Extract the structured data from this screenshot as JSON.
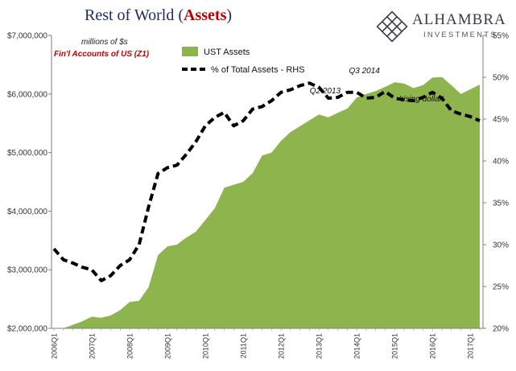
{
  "header": {
    "title_prefix": "Rest of World (",
    "title_emphasis": "Assets",
    "title_suffix": ")",
    "units_note": "millions of $s",
    "source_note": "Fin'l Accounts of US (Z1)"
  },
  "logo": {
    "name": "ALHAMBRA",
    "subtitle": "INVESTMENTS",
    "icon": "alhambra-lattice-icon"
  },
  "colors": {
    "area_fill": "#8eb44e",
    "line": "#000000",
    "title": "#1f2a6b",
    "accent": "#c00000"
  },
  "chart_data": {
    "type": "area",
    "x_tick_labels": [
      "2006Q1",
      "2007Q1",
      "2008Q1",
      "2009Q1",
      "2010Q1",
      "2011Q1",
      "2012Q1",
      "2013Q1",
      "2014Q1",
      "2015Q1",
      "2016Q1",
      "2017Q1"
    ],
    "x_tick_index": [
      0,
      4,
      8,
      12,
      16,
      20,
      24,
      28,
      32,
      36,
      40,
      44
    ],
    "ylim_left": [
      2000000,
      7000000
    ],
    "ylim_right": [
      20,
      55
    ],
    "left_tick_values": [
      2000000,
      3000000,
      4000000,
      5000000,
      6000000,
      7000000
    ],
    "left_tick_labels": [
      "$2,000,000",
      "$3,000,000",
      "$4,000,000",
      "$5,000,000",
      "$6,000,000",
      "$7,000,000"
    ],
    "right_tick_values": [
      20,
      25,
      30,
      35,
      40,
      45,
      50,
      55
    ],
    "right_tick_labels": [
      "20%",
      "25%",
      "30%",
      "35%",
      "40%",
      "45%",
      "50%",
      "55%"
    ],
    "series": [
      {
        "name": "UST Assets",
        "axis": "left",
        "kind": "area",
        "values": [
          1990000,
          2000000,
          2060000,
          2120000,
          2200000,
          2180000,
          2220000,
          2310000,
          2450000,
          2470000,
          2700000,
          3250000,
          3400000,
          3430000,
          3550000,
          3650000,
          3850000,
          4050000,
          4400000,
          4450000,
          4500000,
          4650000,
          4950000,
          5000000,
          5200000,
          5350000,
          5450000,
          5550000,
          5650000,
          5600000,
          5680000,
          5750000,
          5940000,
          6000000,
          6050000,
          6120000,
          6200000,
          6180000,
          6100000,
          6150000,
          6280000,
          6290000,
          6150000,
          6000000,
          6080000,
          6160000
        ]
      },
      {
        "name": "% of Total Assets - RHS",
        "axis": "right",
        "kind": "dashed-line",
        "values": [
          29.5,
          28.2,
          27.8,
          27.3,
          27.0,
          25.7,
          26.3,
          27.5,
          28.2,
          30.0,
          34.5,
          38.5,
          39.2,
          39.5,
          40.8,
          42.3,
          44.2,
          45.2,
          45.8,
          44.2,
          44.8,
          46.2,
          46.5,
          47.2,
          48.2,
          48.5,
          49.0,
          49.3,
          48.8,
          47.5,
          47.6,
          48.2,
          48.2,
          47.5,
          47.6,
          48.3,
          47.5,
          47.3,
          47.2,
          47.6,
          48.2,
          47.5,
          46.0,
          45.6,
          45.3,
          44.8
        ]
      }
    ],
    "legend": {
      "placement": "top-center",
      "entries": [
        {
          "label": "UST Assets",
          "swatch": "area"
        },
        {
          "label": "% of Total Assets - RHS",
          "swatch": "dashed-line"
        }
      ]
    },
    "annotations": [
      {
        "text": "Q2 2013",
        "series": 1,
        "index": 29
      },
      {
        "text": "Q3 2014",
        "series": 0,
        "index": 34
      },
      {
        "text": "'rising dollar'",
        "series": 0,
        "index": 39
      }
    ],
    "grid": false
  }
}
